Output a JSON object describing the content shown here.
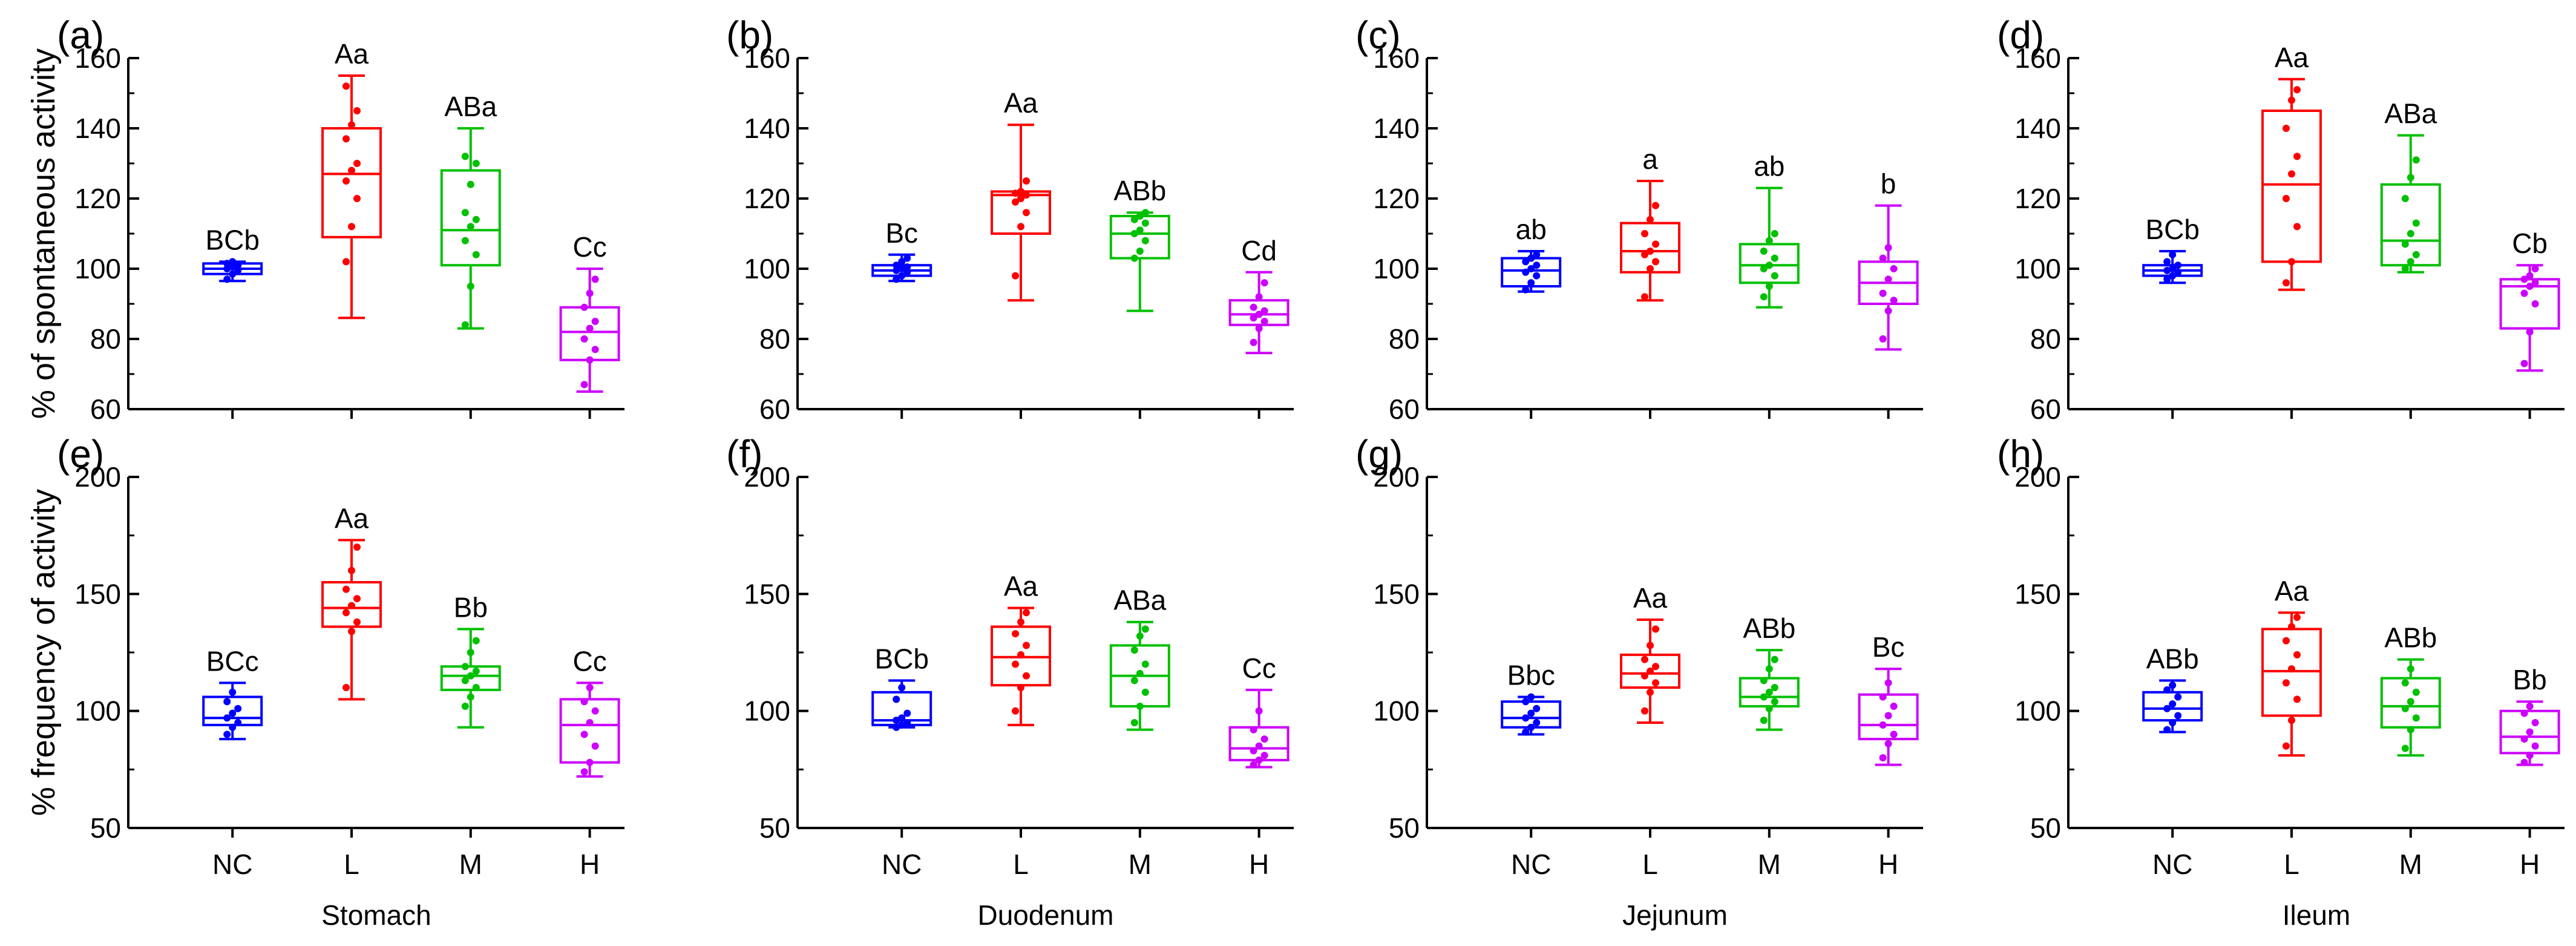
{
  "chart_data": [
    {
      "type": "box",
      "panel_label": "(a)",
      "title": "",
      "ylabel": "% of spontaneous activity",
      "xlabel": "",
      "ylim": [
        60,
        160
      ],
      "yticks": [
        60,
        80,
        100,
        120,
        140,
        160
      ],
      "categories": [
        "NC",
        "L",
        "M",
        "H"
      ],
      "series": [
        {
          "name": "NC",
          "color": "#0000ff",
          "whisker_low": 96.5,
          "q1": 98.5,
          "median": 100,
          "q3": 101.5,
          "whisker_high": 102,
          "points": [
            97,
            98.5,
            99.5,
            100,
            100.5,
            101,
            101.5,
            102
          ],
          "letters": "BCb"
        },
        {
          "name": "L",
          "color": "#ff0000",
          "whisker_low": 86,
          "q1": 109,
          "median": 127,
          "q3": 140,
          "whisker_high": 155,
          "points": [
            102,
            112,
            120,
            125,
            128,
            130,
            137,
            141,
            145,
            152
          ],
          "letters": "Aa"
        },
        {
          "name": "M",
          "color": "#00c000",
          "whisker_low": 83,
          "q1": 101,
          "median": 111,
          "q3": 128,
          "whisker_high": 140,
          "points": [
            84,
            95,
            104,
            108,
            112,
            114,
            116,
            124,
            130,
            132
          ],
          "letters": "ABa"
        },
        {
          "name": "H",
          "color": "#cc00ff",
          "whisker_low": 65,
          "q1": 74,
          "median": 82,
          "q3": 89,
          "whisker_high": 100,
          "points": [
            67,
            74,
            77,
            80,
            83,
            85,
            89,
            93,
            97
          ],
          "letters": "Cc"
        }
      ]
    },
    {
      "type": "box",
      "panel_label": "(b)",
      "title": "",
      "ylabel": "",
      "xlabel": "",
      "ylim": [
        60,
        160
      ],
      "yticks": [
        60,
        80,
        100,
        120,
        140,
        160
      ],
      "categories": [
        "NC",
        "L",
        "M",
        "H"
      ],
      "series": [
        {
          "name": "NC",
          "color": "#0000ff",
          "whisker_low": 96.5,
          "q1": 98,
          "median": 99.5,
          "q3": 101,
          "whisker_high": 104,
          "points": [
            97,
            98,
            99,
            99.5,
            100,
            100.5,
            101,
            102,
            103
          ],
          "letters": "Bc"
        },
        {
          "name": "L",
          "color": "#ff0000",
          "whisker_low": 91,
          "q1": 110,
          "median": 121,
          "q3": 122,
          "whisker_high": 141,
          "points": [
            98,
            112,
            116,
            119,
            120,
            121,
            121.5,
            122,
            125
          ],
          "letters": "Aa"
        },
        {
          "name": "M",
          "color": "#00c000",
          "whisker_low": 88,
          "q1": 103,
          "median": 110,
          "q3": 115,
          "whisker_high": 116,
          "points": [
            103,
            105,
            108,
            110,
            111,
            113,
            114,
            115,
            116
          ],
          "letters": "ABb"
        },
        {
          "name": "H",
          "color": "#cc00ff",
          "whisker_low": 76,
          "q1": 84,
          "median": 87,
          "q3": 91,
          "whisker_high": 99,
          "points": [
            79,
            83,
            85,
            86,
            87,
            88,
            89,
            92,
            96
          ],
          "letters": "Cd"
        }
      ]
    },
    {
      "type": "box",
      "panel_label": "(c)",
      "title": "",
      "ylabel": "",
      "xlabel": "",
      "ylim": [
        60,
        160
      ],
      "yticks": [
        60,
        80,
        100,
        120,
        140,
        160
      ],
      "categories": [
        "NC",
        "L",
        "M",
        "H"
      ],
      "series": [
        {
          "name": "NC",
          "color": "#0000ff",
          "whisker_low": 93.5,
          "q1": 95,
          "median": 99.5,
          "q3": 103,
          "whisker_high": 105,
          "points": [
            94,
            96,
            98,
            99,
            100,
            101,
            102,
            103,
            104
          ],
          "letters": "ab"
        },
        {
          "name": "L",
          "color": "#ff0000",
          "whisker_low": 91,
          "q1": 99,
          "median": 105,
          "q3": 113,
          "whisker_high": 125,
          "points": [
            92,
            100,
            102,
            104,
            105,
            107,
            110,
            114,
            118
          ],
          "letters": "a"
        },
        {
          "name": "M",
          "color": "#00c000",
          "whisker_low": 89,
          "q1": 96,
          "median": 101,
          "q3": 107,
          "whisker_high": 123,
          "points": [
            92,
            95,
            98,
            100,
            101,
            103,
            105,
            108,
            110
          ],
          "letters": "ab"
        },
        {
          "name": "H",
          "color": "#cc00ff",
          "whisker_low": 77,
          "q1": 90,
          "median": 96,
          "q3": 102,
          "whisker_high": 118,
          "points": [
            80,
            88,
            91,
            93,
            97,
            100,
            103,
            106
          ],
          "letters": "b"
        }
      ]
    },
    {
      "type": "box",
      "panel_label": "(d)",
      "title": "",
      "ylabel": "",
      "xlabel": "",
      "ylim": [
        60,
        160
      ],
      "yticks": [
        60,
        80,
        100,
        120,
        140,
        160
      ],
      "categories": [
        "NC",
        "L",
        "M",
        "H"
      ],
      "series": [
        {
          "name": "NC",
          "color": "#0000ff",
          "whisker_low": 96,
          "q1": 98,
          "median": 99.5,
          "q3": 101,
          "whisker_high": 105,
          "points": [
            97,
            98,
            99,
            99.5,
            100,
            101,
            102,
            104
          ],
          "letters": "BCb"
        },
        {
          "name": "L",
          "color": "#ff0000",
          "whisker_low": 94,
          "q1": 102,
          "median": 124,
          "q3": 145,
          "whisker_high": 154,
          "points": [
            96,
            102,
            112,
            120,
            127,
            132,
            140,
            148,
            151
          ],
          "letters": "Aa"
        },
        {
          "name": "M",
          "color": "#00c000",
          "whisker_low": 99,
          "q1": 101,
          "median": 108,
          "q3": 124,
          "whisker_high": 138,
          "points": [
            100,
            102,
            104,
            107,
            110,
            113,
            120,
            126,
            131
          ],
          "letters": "ABa"
        },
        {
          "name": "H",
          "color": "#cc00ff",
          "whisker_low": 71,
          "q1": 83,
          "median": 95,
          "q3": 97,
          "whisker_high": 101,
          "points": [
            73,
            82,
            90,
            93,
            95,
            96,
            97,
            98,
            100
          ],
          "letters": "Cb"
        }
      ]
    },
    {
      "type": "box",
      "panel_label": "(e)",
      "title": "",
      "ylabel": "% frequency of activity",
      "xlabel": "Stomach",
      "ylim": [
        50,
        200
      ],
      "yticks": [
        50,
        100,
        150,
        200
      ],
      "categories": [
        "NC",
        "L",
        "M",
        "H"
      ],
      "series": [
        {
          "name": "NC",
          "color": "#0000ff",
          "whisker_low": 88,
          "q1": 94,
          "median": 97,
          "q3": 106,
          "whisker_high": 112,
          "points": [
            90,
            93,
            95,
            97,
            99,
            101,
            104,
            108
          ],
          "letters": "BCc"
        },
        {
          "name": "L",
          "color": "#ff0000",
          "whisker_low": 105,
          "q1": 136,
          "median": 144,
          "q3": 155,
          "whisker_high": 173,
          "points": [
            110,
            134,
            138,
            142,
            145,
            148,
            152,
            160,
            170
          ],
          "letters": "Aa"
        },
        {
          "name": "M",
          "color": "#00c000",
          "whisker_low": 93,
          "q1": 109,
          "median": 115,
          "q3": 119,
          "whisker_high": 135,
          "points": [
            102,
            106,
            110,
            113,
            115,
            117,
            119,
            125,
            130
          ],
          "letters": "Bb"
        },
        {
          "name": "H",
          "color": "#cc00ff",
          "whisker_low": 72,
          "q1": 78,
          "median": 94,
          "q3": 105,
          "whisker_high": 112,
          "points": [
            74,
            78,
            85,
            90,
            95,
            100,
            104,
            110
          ],
          "letters": "Cc"
        }
      ]
    },
    {
      "type": "box",
      "panel_label": "(f)",
      "title": "",
      "ylabel": "",
      "xlabel": "Duodenum",
      "ylim": [
        50,
        200
      ],
      "yticks": [
        50,
        100,
        150,
        200
      ],
      "categories": [
        "NC",
        "L",
        "M",
        "H"
      ],
      "series": [
        {
          "name": "NC",
          "color": "#0000ff",
          "whisker_low": 93,
          "q1": 94,
          "median": 96,
          "q3": 108,
          "whisker_high": 113,
          "points": [
            93,
            94,
            95,
            96,
            97,
            99,
            105,
            110
          ],
          "letters": "BCb"
        },
        {
          "name": "L",
          "color": "#ff0000",
          "whisker_low": 94,
          "q1": 111,
          "median": 123,
          "q3": 136,
          "whisker_high": 144,
          "points": [
            100,
            110,
            115,
            120,
            124,
            128,
            133,
            138,
            142
          ],
          "letters": "Aa"
        },
        {
          "name": "M",
          "color": "#00c000",
          "whisker_low": 92,
          "q1": 102,
          "median": 115,
          "q3": 128,
          "whisker_high": 138,
          "points": [
            95,
            102,
            108,
            113,
            116,
            120,
            126,
            132,
            135
          ],
          "letters": "ABa"
        },
        {
          "name": "H",
          "color": "#cc00ff",
          "whisker_low": 76,
          "q1": 79,
          "median": 84,
          "q3": 93,
          "whisker_high": 109,
          "points": [
            77,
            79,
            81,
            83,
            85,
            88,
            92,
            100
          ],
          "letters": "Cc"
        }
      ]
    },
    {
      "type": "box",
      "panel_label": "(g)",
      "title": "",
      "ylabel": "",
      "xlabel": "Jejunum",
      "ylim": [
        50,
        200
      ],
      "yticks": [
        50,
        100,
        150,
        200
      ],
      "categories": [
        "NC",
        "L",
        "M",
        "H"
      ],
      "series": [
        {
          "name": "NC",
          "color": "#0000ff",
          "whisker_low": 90,
          "q1": 93,
          "median": 97,
          "q3": 104,
          "whisker_high": 106,
          "points": [
            91,
            93,
            95,
            97,
            99,
            101,
            104,
            106
          ],
          "letters": "Bbc"
        },
        {
          "name": "L",
          "color": "#ff0000",
          "whisker_low": 95,
          "q1": 110,
          "median": 116,
          "q3": 124,
          "whisker_high": 139,
          "points": [
            100,
            108,
            112,
            115,
            117,
            119,
            122,
            128,
            135
          ],
          "letters": "Aa"
        },
        {
          "name": "M",
          "color": "#00c000",
          "whisker_low": 92,
          "q1": 102,
          "median": 106,
          "q3": 114,
          "whisker_high": 126,
          "points": [
            96,
            101,
            104,
            106,
            108,
            110,
            113,
            118,
            122
          ],
          "letters": "ABb"
        },
        {
          "name": "H",
          "color": "#cc00ff",
          "whisker_low": 77,
          "q1": 88,
          "median": 94,
          "q3": 107,
          "whisker_high": 118,
          "points": [
            80,
            86,
            90,
            94,
            98,
            102,
            106,
            112
          ],
          "letters": "Bc"
        }
      ]
    },
    {
      "type": "box",
      "panel_label": "(h)",
      "title": "",
      "ylabel": "",
      "xlabel": "Ileum",
      "ylim": [
        50,
        200
      ],
      "yticks": [
        50,
        100,
        150,
        200
      ],
      "categories": [
        "NC",
        "L",
        "M",
        "H"
      ],
      "series": [
        {
          "name": "NC",
          "color": "#0000ff",
          "whisker_low": 91,
          "q1": 96,
          "median": 101,
          "q3": 108,
          "whisker_high": 113,
          "points": [
            92,
            95,
            98,
            101,
            103,
            106,
            109,
            111
          ],
          "letters": "ABb"
        },
        {
          "name": "L",
          "color": "#ff0000",
          "whisker_low": 81,
          "q1": 98,
          "median": 117,
          "q3": 135,
          "whisker_high": 142,
          "points": [
            85,
            96,
            105,
            112,
            118,
            124,
            130,
            136,
            140
          ],
          "letters": "Aa"
        },
        {
          "name": "M",
          "color": "#00c000",
          "whisker_low": 81,
          "q1": 93,
          "median": 102,
          "q3": 114,
          "whisker_high": 122,
          "points": [
            84,
            92,
            97,
            101,
            104,
            108,
            112,
            118
          ],
          "letters": "ABb"
        },
        {
          "name": "H",
          "color": "#cc00ff",
          "whisker_low": 77,
          "q1": 82,
          "median": 89,
          "q3": 100,
          "whisker_high": 104,
          "points": [
            78,
            81,
            85,
            88,
            91,
            95,
            99,
            102
          ],
          "letters": "Bb"
        }
      ]
    }
  ]
}
